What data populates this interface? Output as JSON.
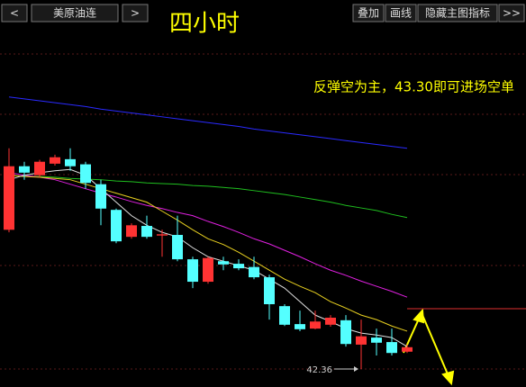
{
  "toolbar": {
    "prev": "<",
    "symbol": "美原油连",
    "next": ">",
    "buttons": [
      "叠加",
      "画线",
      "隐藏主图指标",
      ">>"
    ]
  },
  "chart_data": {
    "type": "candlestick",
    "title": "四小时",
    "annotation": "反弹空为主，43.30即可进场空单",
    "categories": [
      null,
      null,
      null,
      null,
      null,
      null,
      null,
      null,
      null,
      null,
      null,
      null,
      null,
      null,
      null,
      null,
      null,
      null,
      null,
      null,
      null,
      null,
      null,
      null,
      null,
      null,
      null
    ],
    "open": [
      44.53,
      45.52,
      45.38,
      45.56,
      45.63,
      45.55,
      45.24,
      44.84,
      44.42,
      44.59,
      44.44,
      44.45,
      44.07,
      43.72,
      44.04,
      44.0,
      43.95,
      43.79,
      43.34,
      43.06,
      42.99,
      43.05,
      43.12,
      42.74,
      42.85,
      42.78,
      42.63
    ],
    "high": [
      45.8,
      45.59,
      45.62,
      45.7,
      45.8,
      45.59,
      45.31,
      44.86,
      44.63,
      44.75,
      44.53,
      44.75,
      44.11,
      44.11,
      44.11,
      44.07,
      44.11,
      43.83,
      43.37,
      43.27,
      43.27,
      43.2,
      43.2,
      43.13,
      42.99,
      42.99,
      42.74
    ],
    "low": [
      44.49,
      45.31,
      45.35,
      45.53,
      45.45,
      45.17,
      44.6,
      44.32,
      44.39,
      44.39,
      44.11,
      44.04,
      43.62,
      43.69,
      43.9,
      43.9,
      43.76,
      43.13,
      43.03,
      42.95,
      42.98,
      43.02,
      42.71,
      42.36,
      42.57,
      42.57,
      42.61
    ],
    "close": [
      45.52,
      45.42,
      45.59,
      45.66,
      45.52,
      45.26,
      44.86,
      44.35,
      44.6,
      44.42,
      44.46,
      44.07,
      43.72,
      44.09,
      43.99,
      43.93,
      43.79,
      43.37,
      43.05,
      42.98,
      43.1,
      43.16,
      42.75,
      42.87,
      42.77,
      42.61,
      42.7
    ],
    "up_color": "#ff3333",
    "down_color": "#54ffff",
    "series": [
      {
        "color": "#2a2aff",
        "values": [
          46.6,
          46.57,
          46.54,
          46.51,
          46.48,
          46.45,
          46.41,
          46.38,
          46.35,
          46.32,
          46.29,
          46.26,
          46.23,
          46.2,
          46.17,
          46.14,
          46.1,
          46.07,
          46.04,
          46.01,
          45.98,
          45.95,
          45.92,
          45.89,
          45.86,
          45.83,
          45.8
        ]
      },
      {
        "color": "#1fbf1f",
        "values": [
          45.38,
          45.36,
          45.36,
          45.35,
          45.33,
          45.32,
          45.31,
          45.29,
          45.28,
          45.26,
          45.25,
          45.24,
          45.22,
          45.21,
          45.19,
          45.17,
          45.14,
          45.11,
          45.08,
          45.04,
          45.0,
          44.96,
          44.91,
          44.87,
          44.83,
          44.77,
          44.72
        ]
      },
      {
        "color": "#e020e0",
        "values": [
          45.42,
          45.38,
          45.35,
          45.31,
          45.24,
          45.17,
          45.1,
          45.04,
          44.97,
          44.91,
          44.86,
          44.8,
          44.75,
          44.66,
          44.58,
          44.49,
          44.39,
          44.31,
          44.21,
          44.11,
          44.0,
          43.9,
          43.82,
          43.73,
          43.65,
          43.57,
          43.48
        ]
      },
      {
        "color": "#e8d020",
        "values": [
          45.38,
          45.36,
          45.35,
          45.33,
          45.31,
          45.24,
          45.17,
          45.1,
          45.03,
          44.96,
          44.82,
          44.68,
          44.53,
          44.39,
          44.3,
          44.18,
          44.04,
          43.9,
          43.76,
          43.65,
          43.55,
          43.41,
          43.31,
          43.2,
          43.13,
          43.03,
          42.95
        ]
      },
      {
        "color": "#e0e0e0",
        "values": [
          45.31,
          45.38,
          45.42,
          45.45,
          45.47,
          45.38,
          45.17,
          44.96,
          44.75,
          44.6,
          44.49,
          44.42,
          44.25,
          44.11,
          44.04,
          43.97,
          43.9,
          43.76,
          43.62,
          43.41,
          43.2,
          43.1,
          42.99,
          42.92,
          42.89,
          42.85,
          42.71
        ]
      }
    ],
    "reference_line": {
      "value": 43.3,
      "color": "#e03030"
    },
    "low_marker": {
      "value": 42.36,
      "label": "42.36"
    },
    "ylim": [
      42.15,
      47.76
    ]
  }
}
